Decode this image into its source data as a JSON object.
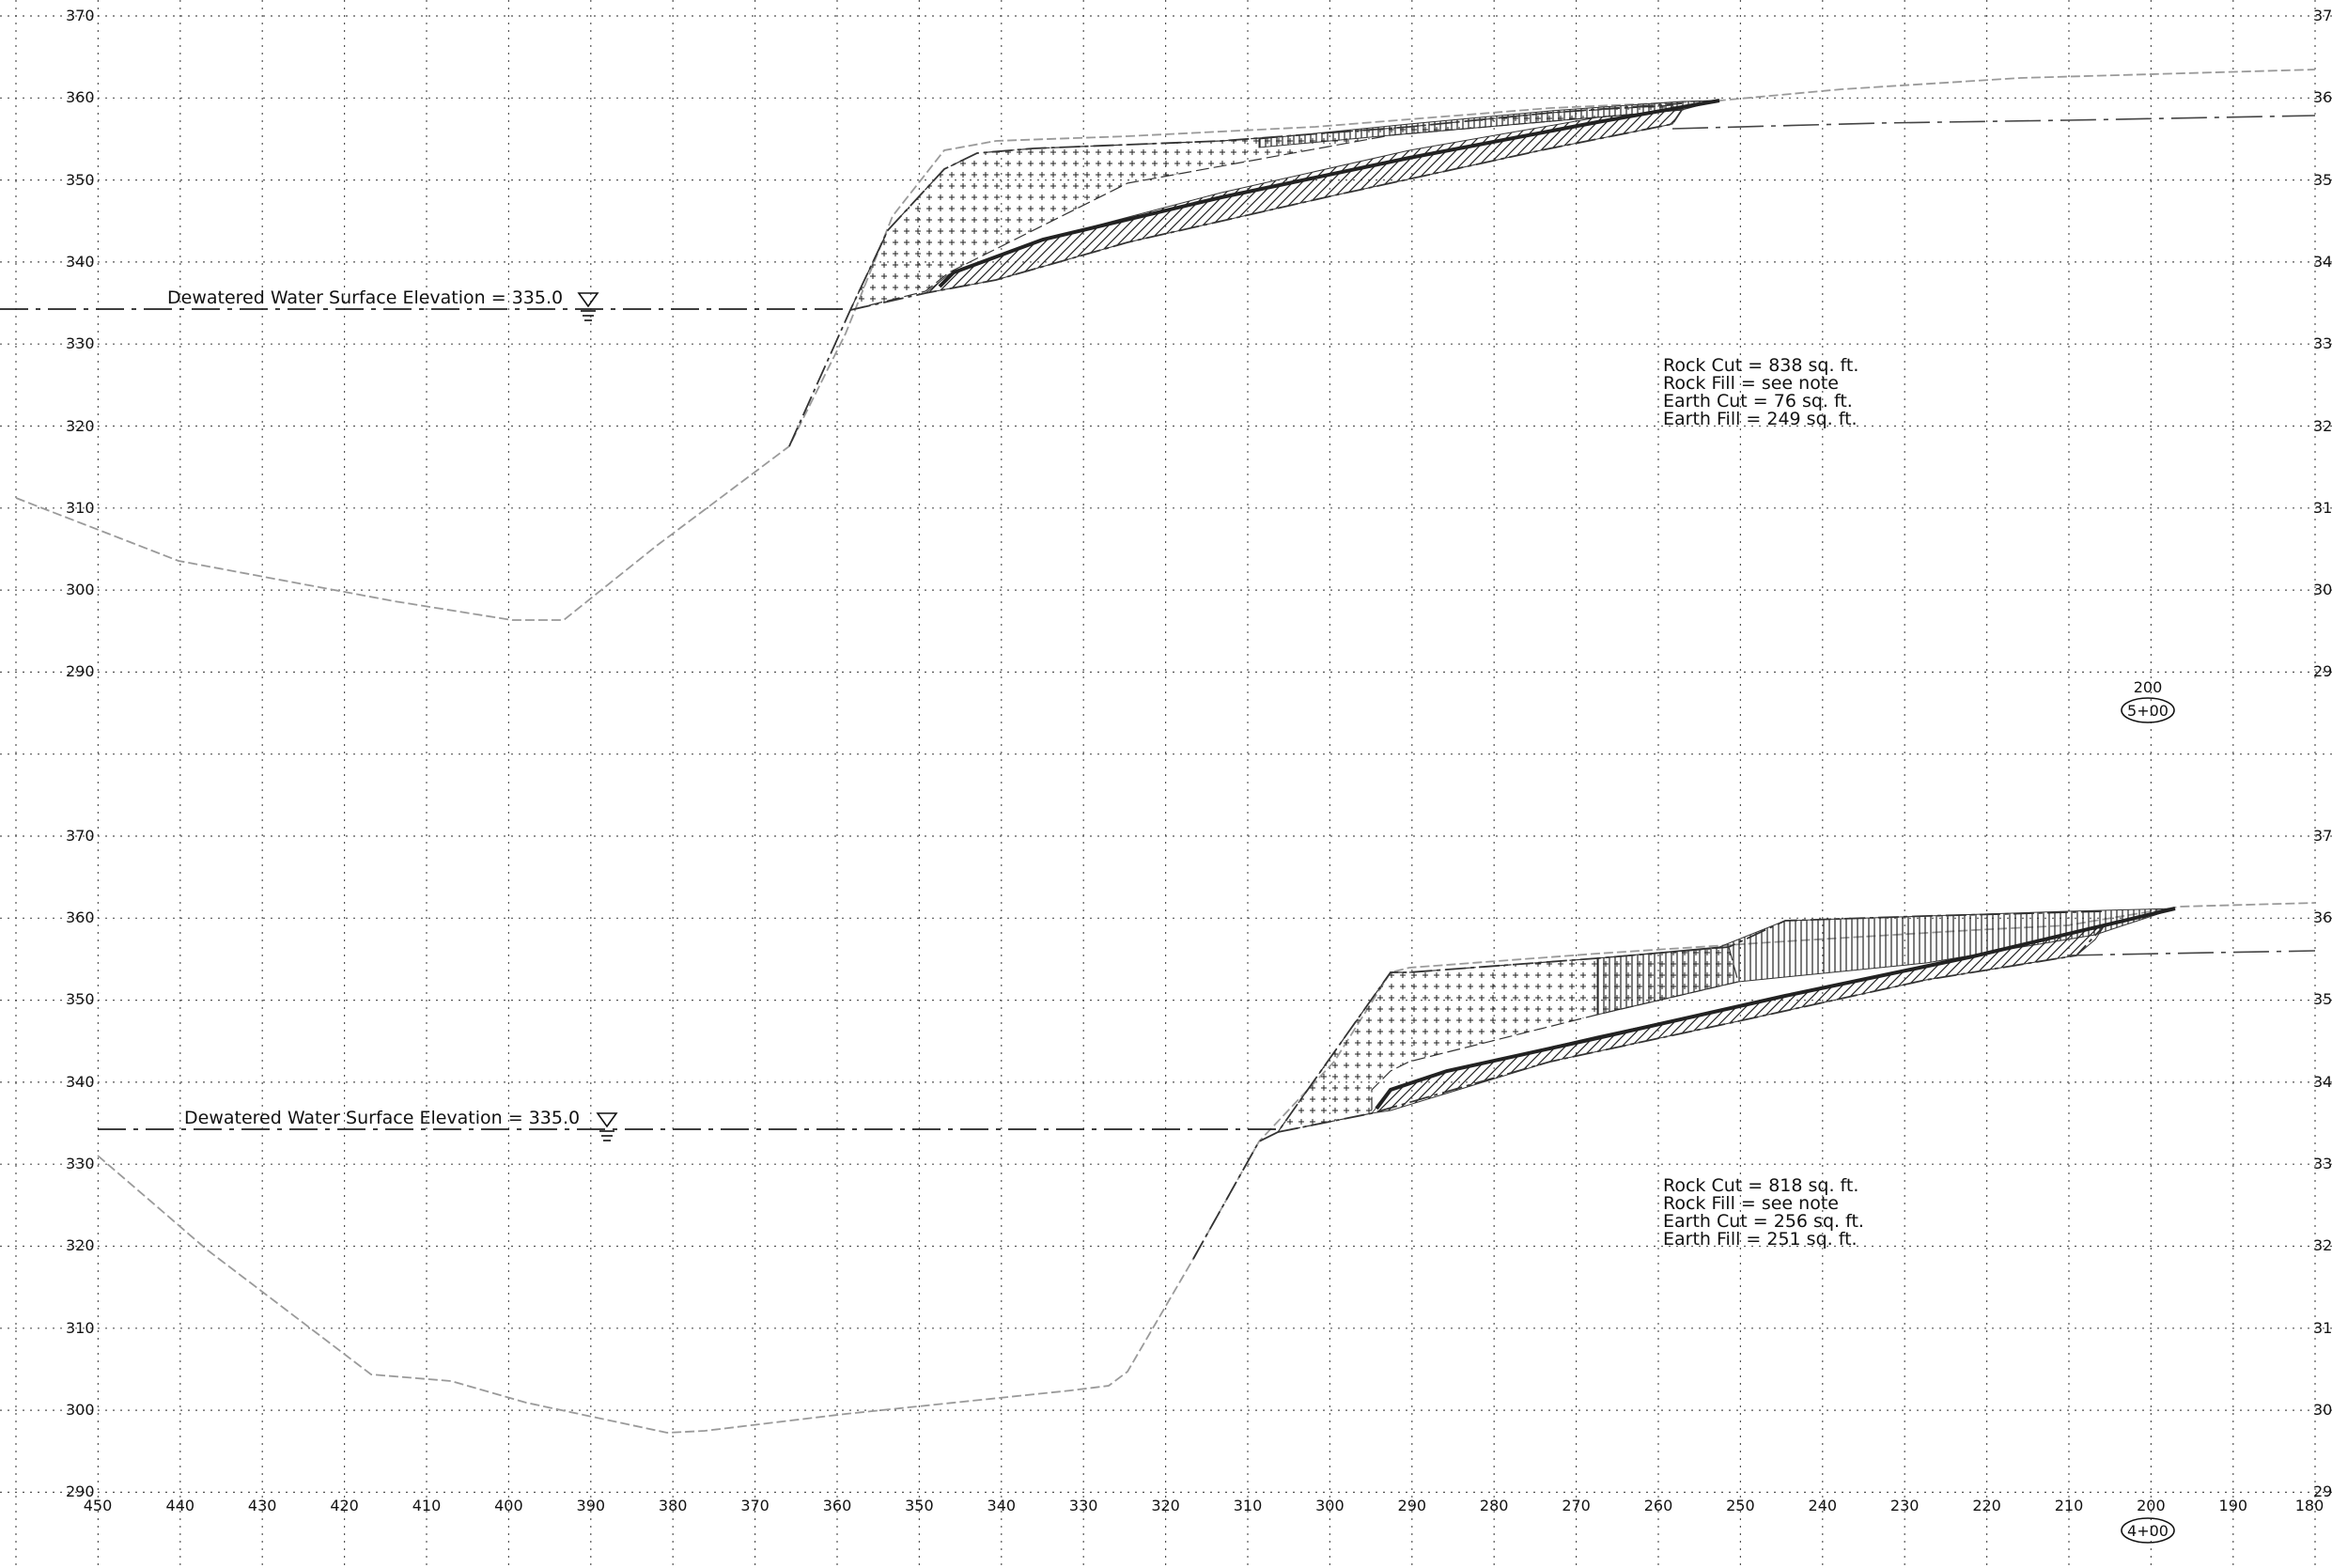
{
  "sections": [
    {
      "elev_ticks": [
        "370",
        "360",
        "350",
        "340",
        "330",
        "320",
        "310",
        "300",
        "290"
      ],
      "right_ticks": [
        "37",
        "36",
        "35",
        "34",
        "33",
        "32",
        "31",
        "30",
        "29"
      ],
      "wse_label": "Dewatered Water Surface Elevation = 335.0",
      "quantities": [
        "Rock Cut = 838 sq. ft.",
        "Rock Fill = see note",
        "Earth Cut = 76 sq. ft.",
        "Earth Fill = 249 sq. ft."
      ],
      "station_offset": "200",
      "station": "5+00"
    },
    {
      "elev_ticks": [
        "370",
        "360",
        "350",
        "340",
        "330",
        "320",
        "310",
        "300",
        "290"
      ],
      "right_ticks": [
        "37",
        "36",
        "35",
        "34",
        "33",
        "32",
        "31",
        "30",
        "29"
      ],
      "wse_label": "Dewatered Water Surface Elevation = 335.0",
      "quantities": [
        "Rock Cut = 818 sq. ft.",
        "Rock Fill = see note",
        "Earth Cut = 256 sq. ft.",
        "Earth Fill = 251 sq. ft."
      ],
      "station_offset": "200",
      "station": "4+00"
    }
  ],
  "offset_ticks": [
    "450",
    "440",
    "430",
    "420",
    "410",
    "400",
    "390",
    "380",
    "370",
    "360",
    "350",
    "340",
    "330",
    "320",
    "310",
    "300",
    "290",
    "280",
    "270",
    "260",
    "250",
    "240",
    "230",
    "220",
    "210",
    "200",
    "190",
    "180"
  ]
}
